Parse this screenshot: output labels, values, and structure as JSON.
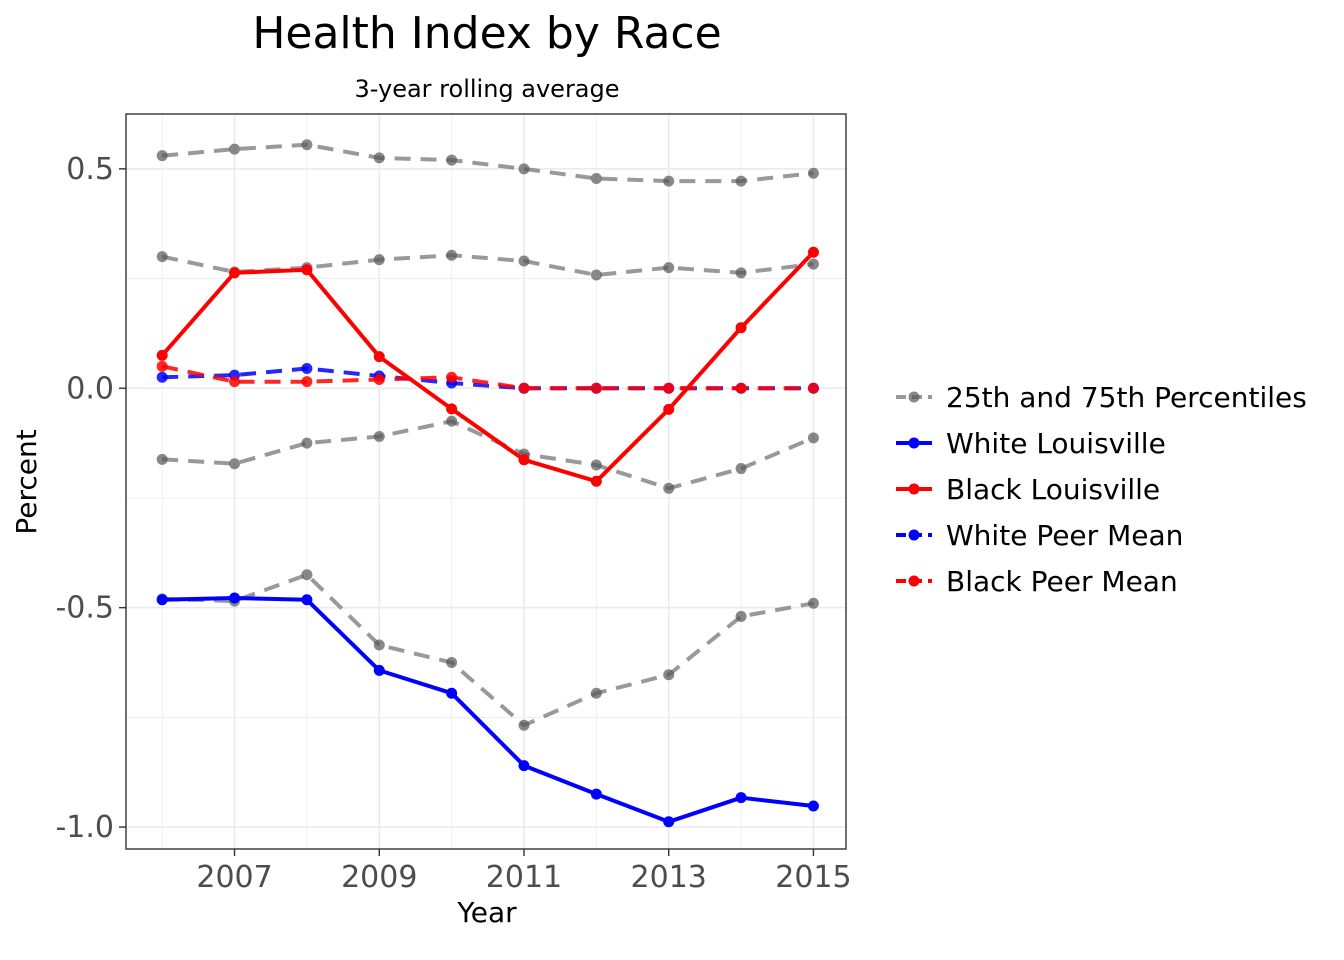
{
  "chart_data": {
    "type": "line",
    "title": "Health Index by Race",
    "subtitle": "3-year rolling average",
    "xlabel": "Year",
    "ylabel": "Percent",
    "x": [
      2006,
      2007,
      2008,
      2009,
      2010,
      2011,
      2012,
      2013,
      2014,
      2015
    ],
    "xticks": [
      "2007",
      "2009",
      "2011",
      "2013",
      "2015"
    ],
    "yticks": [
      "0.5",
      "0.0",
      "-0.5",
      "-1.0"
    ],
    "ylim": [
      -1.05,
      0.625
    ],
    "xlim": [
      2005.5,
      2015.45
    ],
    "grid": true,
    "legend_position": "right",
    "series": [
      {
        "name": "25th and 75th Percentiles",
        "role": "percentile",
        "values": [
          0.53,
          0.545,
          0.555,
          0.525,
          0.52,
          0.5,
          0.478,
          0.472,
          0.472,
          0.49
        ],
        "color": "#808080",
        "style": "dashed"
      },
      {
        "name": "25th and 75th Percentiles",
        "role": "percentile",
        "values": [
          0.3,
          0.265,
          0.275,
          0.293,
          0.303,
          0.29,
          0.258,
          0.275,
          0.263,
          0.283
        ],
        "color": "#808080",
        "style": "dashed"
      },
      {
        "name": "25th and 75th Percentiles",
        "role": "percentile",
        "values": [
          -0.162,
          -0.172,
          -0.125,
          -0.11,
          -0.075,
          -0.15,
          -0.175,
          -0.228,
          -0.183,
          -0.113
        ],
        "color": "#808080",
        "style": "dashed"
      },
      {
        "name": "25th and 75th Percentiles",
        "role": "percentile",
        "values": [
          -0.48,
          -0.485,
          -0.425,
          -0.585,
          -0.625,
          -0.768,
          -0.695,
          -0.653,
          -0.52,
          -0.49
        ],
        "color": "#808080",
        "style": "dashed"
      },
      {
        "name": "White Peer Mean",
        "role": "peer",
        "values": [
          0.025,
          0.03,
          0.045,
          0.028,
          0.012,
          0.0,
          0.0,
          0.0,
          0.0,
          0.0
        ],
        "color": "#0000ff",
        "style": "dashed"
      },
      {
        "name": "Black Peer Mean",
        "role": "peer",
        "values": [
          0.05,
          0.015,
          0.015,
          0.02,
          0.025,
          0.0,
          0.0,
          0.0,
          0.0,
          0.0
        ],
        "color": "#ff0000",
        "style": "dashed"
      },
      {
        "name": "White Louisville",
        "role": "main",
        "values": [
          -0.482,
          -0.478,
          -0.482,
          -0.643,
          -0.695,
          -0.86,
          -0.925,
          -0.988,
          -0.933,
          -0.952
        ],
        "color": "#0000ff",
        "style": "solid"
      },
      {
        "name": "Black Louisville",
        "role": "main",
        "values": [
          0.075,
          0.263,
          0.27,
          0.072,
          -0.047,
          -0.163,
          -0.212,
          -0.048,
          0.138,
          0.31
        ],
        "color": "#ff0000",
        "style": "solid"
      }
    ],
    "legend": [
      {
        "label": "25th and 75th Percentiles",
        "color": "#808080",
        "style": "dashed"
      },
      {
        "label": "White Louisville",
        "color": "#0000ff",
        "style": "solid"
      },
      {
        "label": "Black Louisville",
        "color": "#ff0000",
        "style": "solid"
      },
      {
        "label": "White Peer Mean",
        "color": "#0000ff",
        "style": "dashed"
      },
      {
        "label": "Black Peer Mean",
        "color": "#ff0000",
        "style": "dashed"
      }
    ]
  }
}
